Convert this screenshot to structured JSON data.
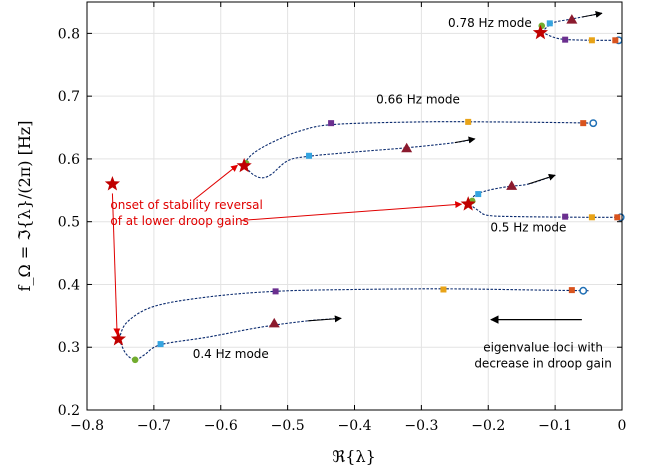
{
  "chart_data": {
    "type": "scatter",
    "xlabel": "ℜ{λ}",
    "ylabel": "f_Ω = ℑ{λ}/(2π) [Hz]",
    "xlim": [
      -0.8,
      0
    ],
    "ylim": [
      0.2,
      0.85
    ],
    "xticks": [
      -0.8,
      -0.7,
      -0.6,
      -0.5,
      -0.4,
      -0.3,
      -0.2,
      -0.1,
      0
    ],
    "xtick_labels": [
      "−0.8",
      "−0.7",
      "−0.6",
      "−0.5",
      "−0.4",
      "−0.3",
      "−0.2",
      "−0.1",
      "0"
    ],
    "yticks": [
      0.2,
      0.3,
      0.4,
      0.5,
      0.6,
      0.7,
      0.8
    ],
    "ytick_labels": [
      "0.2",
      "0.3",
      "0.4",
      "0.5",
      "0.6",
      "0.7",
      "0.8"
    ],
    "grid": true,
    "colors": {
      "locus": "#0a2a6e",
      "star": "#c00000",
      "triangle": "#8b1a2e",
      "square_orange": "#e8a317",
      "square_purple": "#6b2f8f",
      "square_red": "#d9541e",
      "square_blue": "#35a4e0",
      "circle_green": "#72ac2e",
      "open_circle": "#1f6fb5",
      "annotation_red": "#e00000"
    },
    "series": [
      {
        "mode": "0.78 Hz mode",
        "upper_branch": [
          [
            -0.12,
            0.802
          ],
          [
            -0.11,
            0.812
          ],
          [
            -0.1,
            0.818
          ],
          [
            -0.08,
            0.822
          ],
          [
            -0.06,
            0.826
          ],
          [
            -0.03,
            0.832
          ]
        ],
        "lower_branch": [
          [
            -0.12,
            0.802
          ],
          [
            -0.1,
            0.793
          ],
          [
            -0.08,
            0.79
          ],
          [
            -0.04,
            0.789
          ],
          [
            -0.015,
            0.789
          ],
          [
            -0.005,
            0.789
          ]
        ],
        "star": [
          -0.122,
          0.801
        ],
        "triangle": [
          -0.075,
          0.822
        ],
        "green_circle": [
          -0.12,
          0.812
        ],
        "blue_square": [
          -0.108,
          0.816
        ],
        "purple_square": [
          -0.085,
          0.79
        ],
        "orange_square": [
          -0.045,
          0.789
        ],
        "red_square": [
          -0.01,
          0.789
        ],
        "open_circle": [
          -0.005,
          0.789
        ],
        "arrow_end": [
          -0.03,
          0.832
        ]
      },
      {
        "mode": "0.66 Hz mode",
        "upper_branch": [
          [
            -0.565,
            0.593
          ],
          [
            -0.55,
            0.61
          ],
          [
            -0.52,
            0.628
          ],
          [
            -0.48,
            0.645
          ],
          [
            -0.43,
            0.655
          ],
          [
            -0.3,
            0.659
          ],
          [
            -0.2,
            0.659
          ],
          [
            -0.1,
            0.658
          ],
          [
            -0.04,
            0.657
          ]
        ],
        "lower_branch": [
          [
            -0.565,
            0.593
          ],
          [
            -0.555,
            0.578
          ],
          [
            -0.54,
            0.57
          ],
          [
            -0.525,
            0.575
          ],
          [
            -0.5,
            0.597
          ],
          [
            -0.47,
            0.604
          ],
          [
            -0.4,
            0.611
          ],
          [
            -0.32,
            0.618
          ],
          [
            -0.25,
            0.626
          ],
          [
            -0.22,
            0.632
          ]
        ],
        "star": [
          -0.565,
          0.589
        ],
        "triangle": [
          -0.322,
          0.617
        ],
        "green_circle": [
          -0.562,
          0.593
        ],
        "blue_square": [
          -0.468,
          0.605
        ],
        "purple_square": [
          -0.435,
          0.657
        ],
        "orange_square": [
          -0.23,
          0.659
        ],
        "red_square": [
          -0.058,
          0.657
        ],
        "open_circle": [
          -0.043,
          0.657
        ],
        "arrow_end": [
          -0.22,
          0.632
        ]
      },
      {
        "mode": "0.5 Hz mode",
        "upper_branch": [
          [
            -0.228,
            0.528
          ],
          [
            -0.22,
            0.542
          ],
          [
            -0.2,
            0.55
          ],
          [
            -0.17,
            0.556
          ],
          [
            -0.14,
            0.56
          ],
          [
            -0.1,
            0.574
          ]
        ],
        "lower_branch": [
          [
            -0.228,
            0.528
          ],
          [
            -0.215,
            0.518
          ],
          [
            -0.2,
            0.51
          ],
          [
            -0.15,
            0.508
          ],
          [
            -0.05,
            0.507
          ],
          [
            -0.003,
            0.507
          ]
        ],
        "star": [
          -0.23,
          0.528
        ],
        "triangle": [
          -0.165,
          0.557
        ],
        "green_circle": [
          -0.224,
          0.533
        ],
        "blue_square": [
          -0.215,
          0.544
        ],
        "purple_square": [
          -0.085,
          0.508
        ],
        "orange_square": [
          -0.045,
          0.507
        ],
        "red_square": [
          -0.007,
          0.507
        ],
        "open_circle": [
          -0.002,
          0.507
        ],
        "arrow_end": [
          -0.1,
          0.574
        ]
      },
      {
        "mode": "0.4 Hz mode",
        "upper_branch": [
          [
            -0.752,
            0.313
          ],
          [
            -0.74,
            0.34
          ],
          [
            -0.7,
            0.365
          ],
          [
            -0.62,
            0.38
          ],
          [
            -0.52,
            0.389
          ],
          [
            -0.4,
            0.392
          ],
          [
            -0.26,
            0.393
          ],
          [
            -0.12,
            0.391
          ],
          [
            -0.05,
            0.39
          ]
        ],
        "lower_branch": [
          [
            -0.752,
            0.313
          ],
          [
            -0.742,
            0.29
          ],
          [
            -0.728,
            0.28
          ],
          [
            -0.714,
            0.288
          ],
          [
            -0.69,
            0.304
          ],
          [
            -0.62,
            0.316
          ],
          [
            -0.54,
            0.332
          ],
          [
            -0.47,
            0.342
          ],
          [
            -0.42,
            0.346
          ]
        ],
        "star": [
          -0.753,
          0.313
        ],
        "triangle": [
          -0.52,
          0.338
        ],
        "green_circle": [
          -0.728,
          0.28
        ],
        "blue_square": [
          -0.69,
          0.305
        ],
        "purple_square": [
          -0.518,
          0.389
        ],
        "orange_square": [
          -0.267,
          0.392
        ],
        "red_square": [
          -0.075,
          0.391
        ],
        "open_circle": [
          -0.058,
          0.39
        ],
        "arrow_end": [
          -0.42,
          0.346
        ]
      }
    ],
    "annotations": {
      "mode_078": "0.78 Hz mode",
      "mode_066": "0.66 Hz mode",
      "mode_05": "0.5 Hz mode",
      "mode_04": "0.4 Hz mode",
      "onset_line1": "onset of stability reversal",
      "onset_line2": "of at lower droop gains",
      "loci_line1": "eigenvalue loci with",
      "loci_line2": "decrease in droop gain",
      "legend_star": [
        -0.762,
        0.56
      ]
    }
  }
}
